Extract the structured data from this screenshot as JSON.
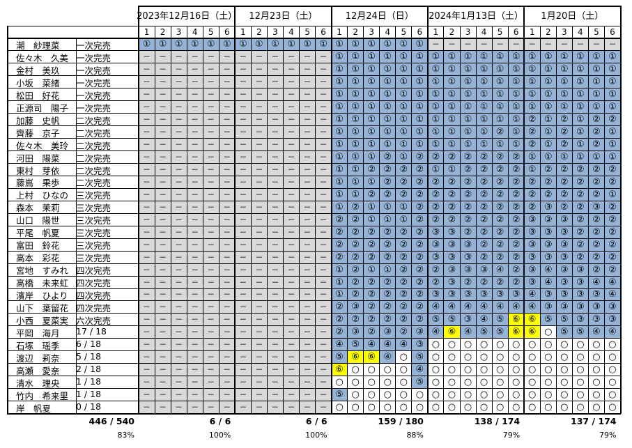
{
  "dates": [
    "2023年12月16日（土）",
    "12月23日（土）",
    "12月24日（日）",
    "2024年1月13日（土）",
    "1月20日（土）"
  ],
  "part_numbers": [
    "1",
    "2",
    "3",
    "4",
    "5",
    "6"
  ],
  "members": [
    {
      "name": "潮　紗理菜",
      "status": "一次完売",
      "cells": "111111111111111111------------"
    },
    {
      "name": "佐々木　久美",
      "status": "一次完売",
      "cells": "------------111111111111111111"
    },
    {
      "name": "金村　美玖",
      "status": "一次完売",
      "cells": "------------111111111111111111"
    },
    {
      "name": "小坂　菜緒",
      "status": "一次完売",
      "cells": "------------111111111111111111"
    },
    {
      "name": "松田　好花",
      "status": "一次完売",
      "cells": "------------111111111111111111"
    },
    {
      "name": "正源司　陽子",
      "status": "一次完売",
      "cells": "------------111111111111111111"
    },
    {
      "name": "加藤　史帆",
      "status": "二次完売",
      "cells": "------------111111111111212122"
    },
    {
      "name": "齊藤　京子",
      "status": "二次完売",
      "cells": "------------111111111121212121"
    },
    {
      "name": "佐々木　美玲",
      "status": "二次完売",
      "cells": "------------111111111111212121"
    },
    {
      "name": "河田　陽菜",
      "status": "二次完売",
      "cells": "------------111212222222111111"
    },
    {
      "name": "東村　芽依",
      "status": "二次完売",
      "cells": "------------112222112222122222"
    },
    {
      "name": "藤嶌　果歩",
      "status": "二次完売",
      "cells": "------------111222222222222222"
    },
    {
      "name": "上村　ひなの",
      "status": "三次完売",
      "cells": "------------112222222222222221"
    },
    {
      "name": "森本　茉莉",
      "status": "三次完売",
      "cells": "------------121112222222232232"
    },
    {
      "name": "山口　陽世",
      "status": "三次完売",
      "cells": "------------221112222222333222"
    },
    {
      "name": "平尾　帆夏",
      "status": "三次完売",
      "cells": "------------222222332222333222"
    },
    {
      "name": "富田　鈴花",
      "status": "三次完売",
      "cells": "------------222222333222333222"
    },
    {
      "name": "高本　彩花",
      "status": "三次完売",
      "cells": "------------222222333222333222"
    },
    {
      "name": "宮地　すみれ",
      "status": "四次完売",
      "cells": "------------121122233342343322"
    },
    {
      "name": "高橋　未来虹",
      "status": "四次完売",
      "cells": "------------122222232222343344"
    },
    {
      "name": "濱岸　ひより",
      "status": "四次完売",
      "cells": "------------122222333333433334"
    },
    {
      "name": "山下　葉留花",
      "status": "四次完売",
      "cells": "------------232222444444433333"
    },
    {
      "name": "小西　夏菜実",
      "status": "六次完売",
      "cells": "------------222222553456655333"
    },
    {
      "name": "平岡　海月",
      "status": "17 / 18",
      "cells": "------------232323464556605544"
    },
    {
      "name": "石塚　瑶季",
      "status": "6 / 18",
      "cells": "------------454443000000000000"
    },
    {
      "name": "渡辺　莉奈",
      "status": "5 / 18",
      "cells": "------------566405000000000000"
    },
    {
      "name": "高瀬　愛奈",
      "status": "2 / 18",
      "cells": "------------600004000000000000"
    },
    {
      "name": "清水　理央",
      "status": "1 / 18",
      "cells": "------------000005000000000000"
    },
    {
      "name": "竹内　希来里",
      "status": "1 / 18",
      "cells": "------------500000000000000000"
    },
    {
      "name": "岸　帆夏",
      "status": "0 / 18",
      "cells": "------------000000000000000000"
    }
  ],
  "totals": [
    {
      "count": "446 / 540",
      "percent": "83%"
    },
    {
      "count": "6 / 6",
      "percent": "100%"
    },
    {
      "count": "6 / 6",
      "percent": "100%"
    },
    {
      "count": "159 / 180",
      "percent": "88%"
    },
    {
      "count": "138 / 174",
      "percent": "79%"
    },
    {
      "count": "137 / 174",
      "percent": "79%"
    }
  ],
  "glyphs": {
    "0": "○",
    "1": "①",
    "2": "②",
    "3": "③",
    "4": "④",
    "5": "⑤",
    "6": "⑥",
    "-": "－"
  },
  "colors": {
    "sold_out_gray": "#d9d9d9",
    "on_sale_blue": "#95b3d7",
    "highlight_yellow": "#ffff00",
    "border": "#000000"
  }
}
